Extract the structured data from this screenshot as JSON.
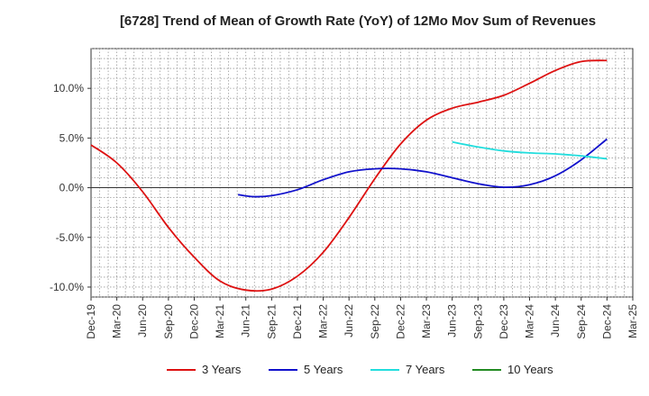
{
  "chart_data": {
    "type": "line",
    "title": "[6728]  Trend of Mean of Growth Rate (YoY) of 12Mo Mov Sum of Revenues",
    "xlabel": "",
    "ylabel": "",
    "x_ticks": [
      "Dec-19",
      "Mar-20",
      "Jun-20",
      "Sep-20",
      "Dec-20",
      "Mar-21",
      "Jun-21",
      "Sep-21",
      "Dec-21",
      "Mar-22",
      "Jun-22",
      "Sep-22",
      "Dec-22",
      "Mar-23",
      "Jun-23",
      "Sep-23",
      "Dec-23",
      "Mar-24",
      "Jun-24",
      "Sep-24",
      "Dec-24",
      "Mar-25"
    ],
    "ylim": [
      -11,
      14
    ],
    "y_ticks": [
      -10,
      -5,
      0,
      5,
      10
    ],
    "y_tick_labels": [
      "-10.0%",
      "-5.0%",
      "0.0%",
      "5.0%",
      "10.0%"
    ],
    "grid": true,
    "legend_position": "bottom",
    "series": [
      {
        "name": "3 Years",
        "color": "#dd1111",
        "points": [
          [
            0,
            4.3
          ],
          [
            1,
            2.5
          ],
          [
            2,
            -0.4
          ],
          [
            3,
            -4.0
          ],
          [
            4,
            -7.0
          ],
          [
            5,
            -9.4
          ],
          [
            6,
            -10.3
          ],
          [
            7,
            -10.2
          ],
          [
            8,
            -8.9
          ],
          [
            9,
            -6.5
          ],
          [
            10,
            -3.0
          ],
          [
            11,
            0.9
          ],
          [
            12,
            4.4
          ],
          [
            13,
            6.8
          ],
          [
            14,
            8.0
          ],
          [
            15,
            8.6
          ],
          [
            16,
            9.3
          ],
          [
            17,
            10.5
          ],
          [
            18,
            11.8
          ],
          [
            19,
            12.7
          ],
          [
            20,
            12.8
          ]
        ]
      },
      {
        "name": "5 Years",
        "color": "#1111cc",
        "points": [
          [
            5.7,
            -0.7
          ],
          [
            6.3,
            -0.9
          ],
          [
            7,
            -0.8
          ],
          [
            8,
            -0.2
          ],
          [
            9,
            0.8
          ],
          [
            10,
            1.6
          ],
          [
            11,
            1.9
          ],
          [
            12,
            1.9
          ],
          [
            13,
            1.6
          ],
          [
            14,
            1.0
          ],
          [
            15,
            0.4
          ],
          [
            16,
            0.05
          ],
          [
            17,
            0.3
          ],
          [
            18,
            1.2
          ],
          [
            19,
            2.8
          ],
          [
            20,
            4.9
          ]
        ]
      },
      {
        "name": "7 Years",
        "color": "#22dddd",
        "points": [
          [
            14,
            4.6
          ],
          [
            15,
            4.1
          ],
          [
            16,
            3.7
          ],
          [
            17,
            3.5
          ],
          [
            18,
            3.4
          ],
          [
            19,
            3.2
          ],
          [
            20,
            2.9
          ]
        ]
      },
      {
        "name": "10 Years",
        "color": "#228b22",
        "points": []
      }
    ]
  }
}
